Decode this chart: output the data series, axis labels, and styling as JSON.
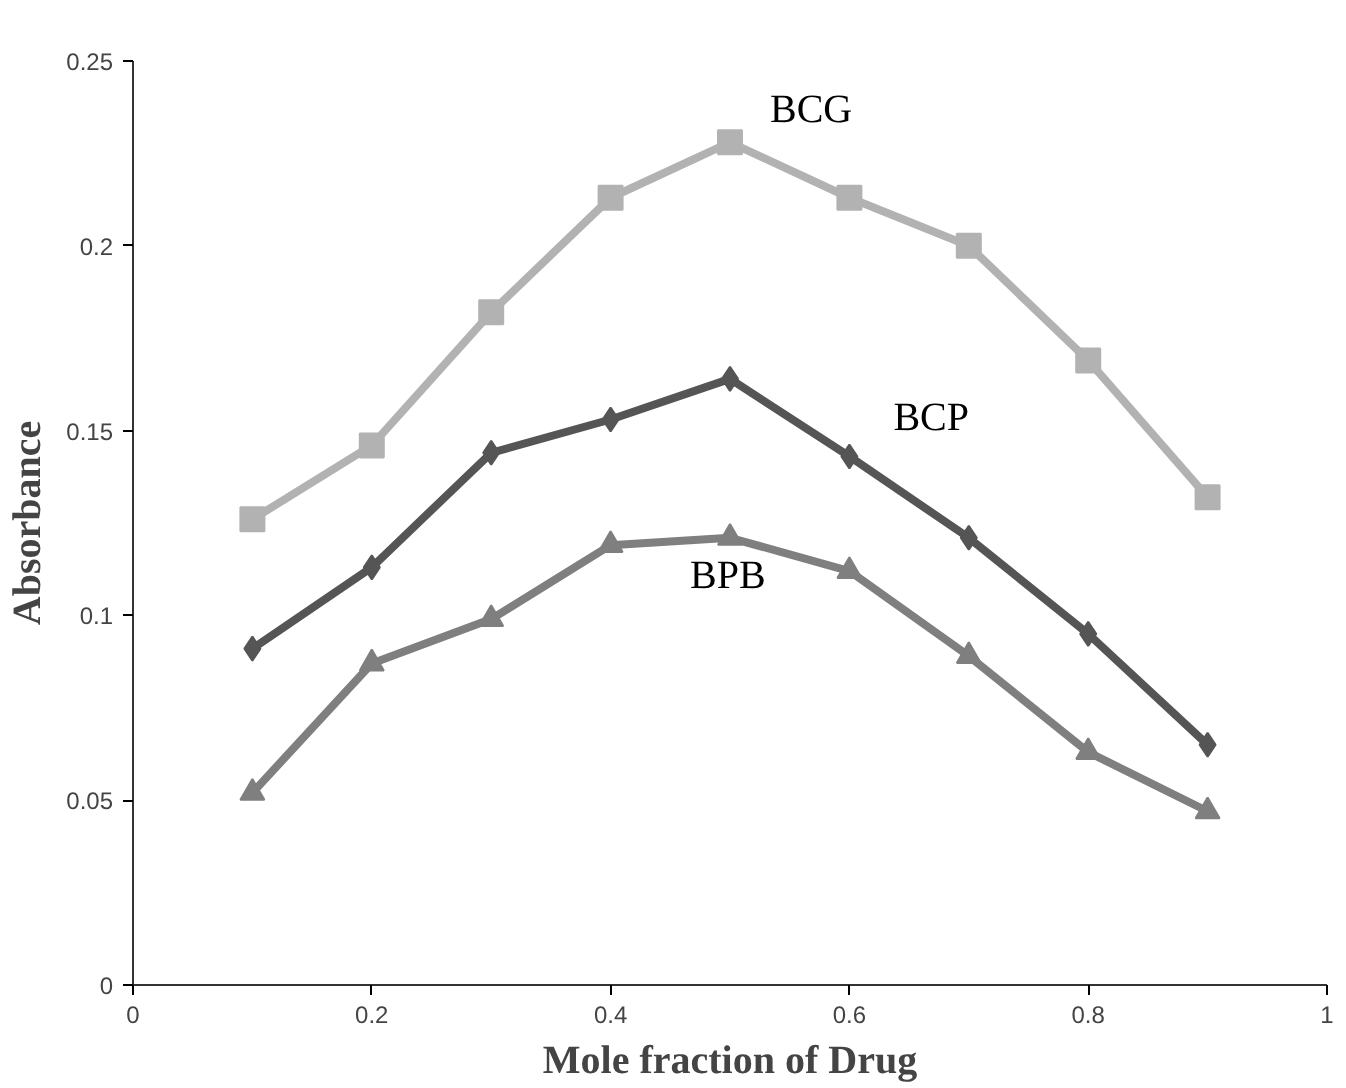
{
  "chart_data": {
    "type": "line",
    "xlabel": "Mole fraction of Drug",
    "ylabel": "Absorbance",
    "x": [
      0.1,
      0.2,
      0.3,
      0.4,
      0.5,
      0.6,
      0.7,
      0.8,
      0.9
    ],
    "series": [
      {
        "name": "BCG",
        "color": "#b2b2b2",
        "marker": "square",
        "values": [
          0.126,
          0.146,
          0.182,
          0.213,
          0.228,
          0.213,
          0.2,
          0.169,
          0.132
        ]
      },
      {
        "name": "BCP",
        "color": "#555555",
        "marker": "diamond",
        "values": [
          0.091,
          0.113,
          0.144,
          0.153,
          0.164,
          0.143,
          0.121,
          0.095,
          0.065
        ]
      },
      {
        "name": "BPB",
        "color": "#7f7f7f",
        "marker": "triangle",
        "values": [
          0.052,
          0.087,
          0.099,
          0.119,
          0.121,
          0.112,
          0.089,
          0.063,
          0.047
        ]
      }
    ],
    "xlim": [
      0,
      1
    ],
    "xticks": [
      0,
      0.2,
      0.4,
      0.6,
      0.8,
      1
    ],
    "ylim": [
      0,
      0.25
    ],
    "yticks": [
      0,
      0.05,
      0.1,
      0.15,
      0.2,
      0.25
    ],
    "grid": false,
    "legend": false
  }
}
